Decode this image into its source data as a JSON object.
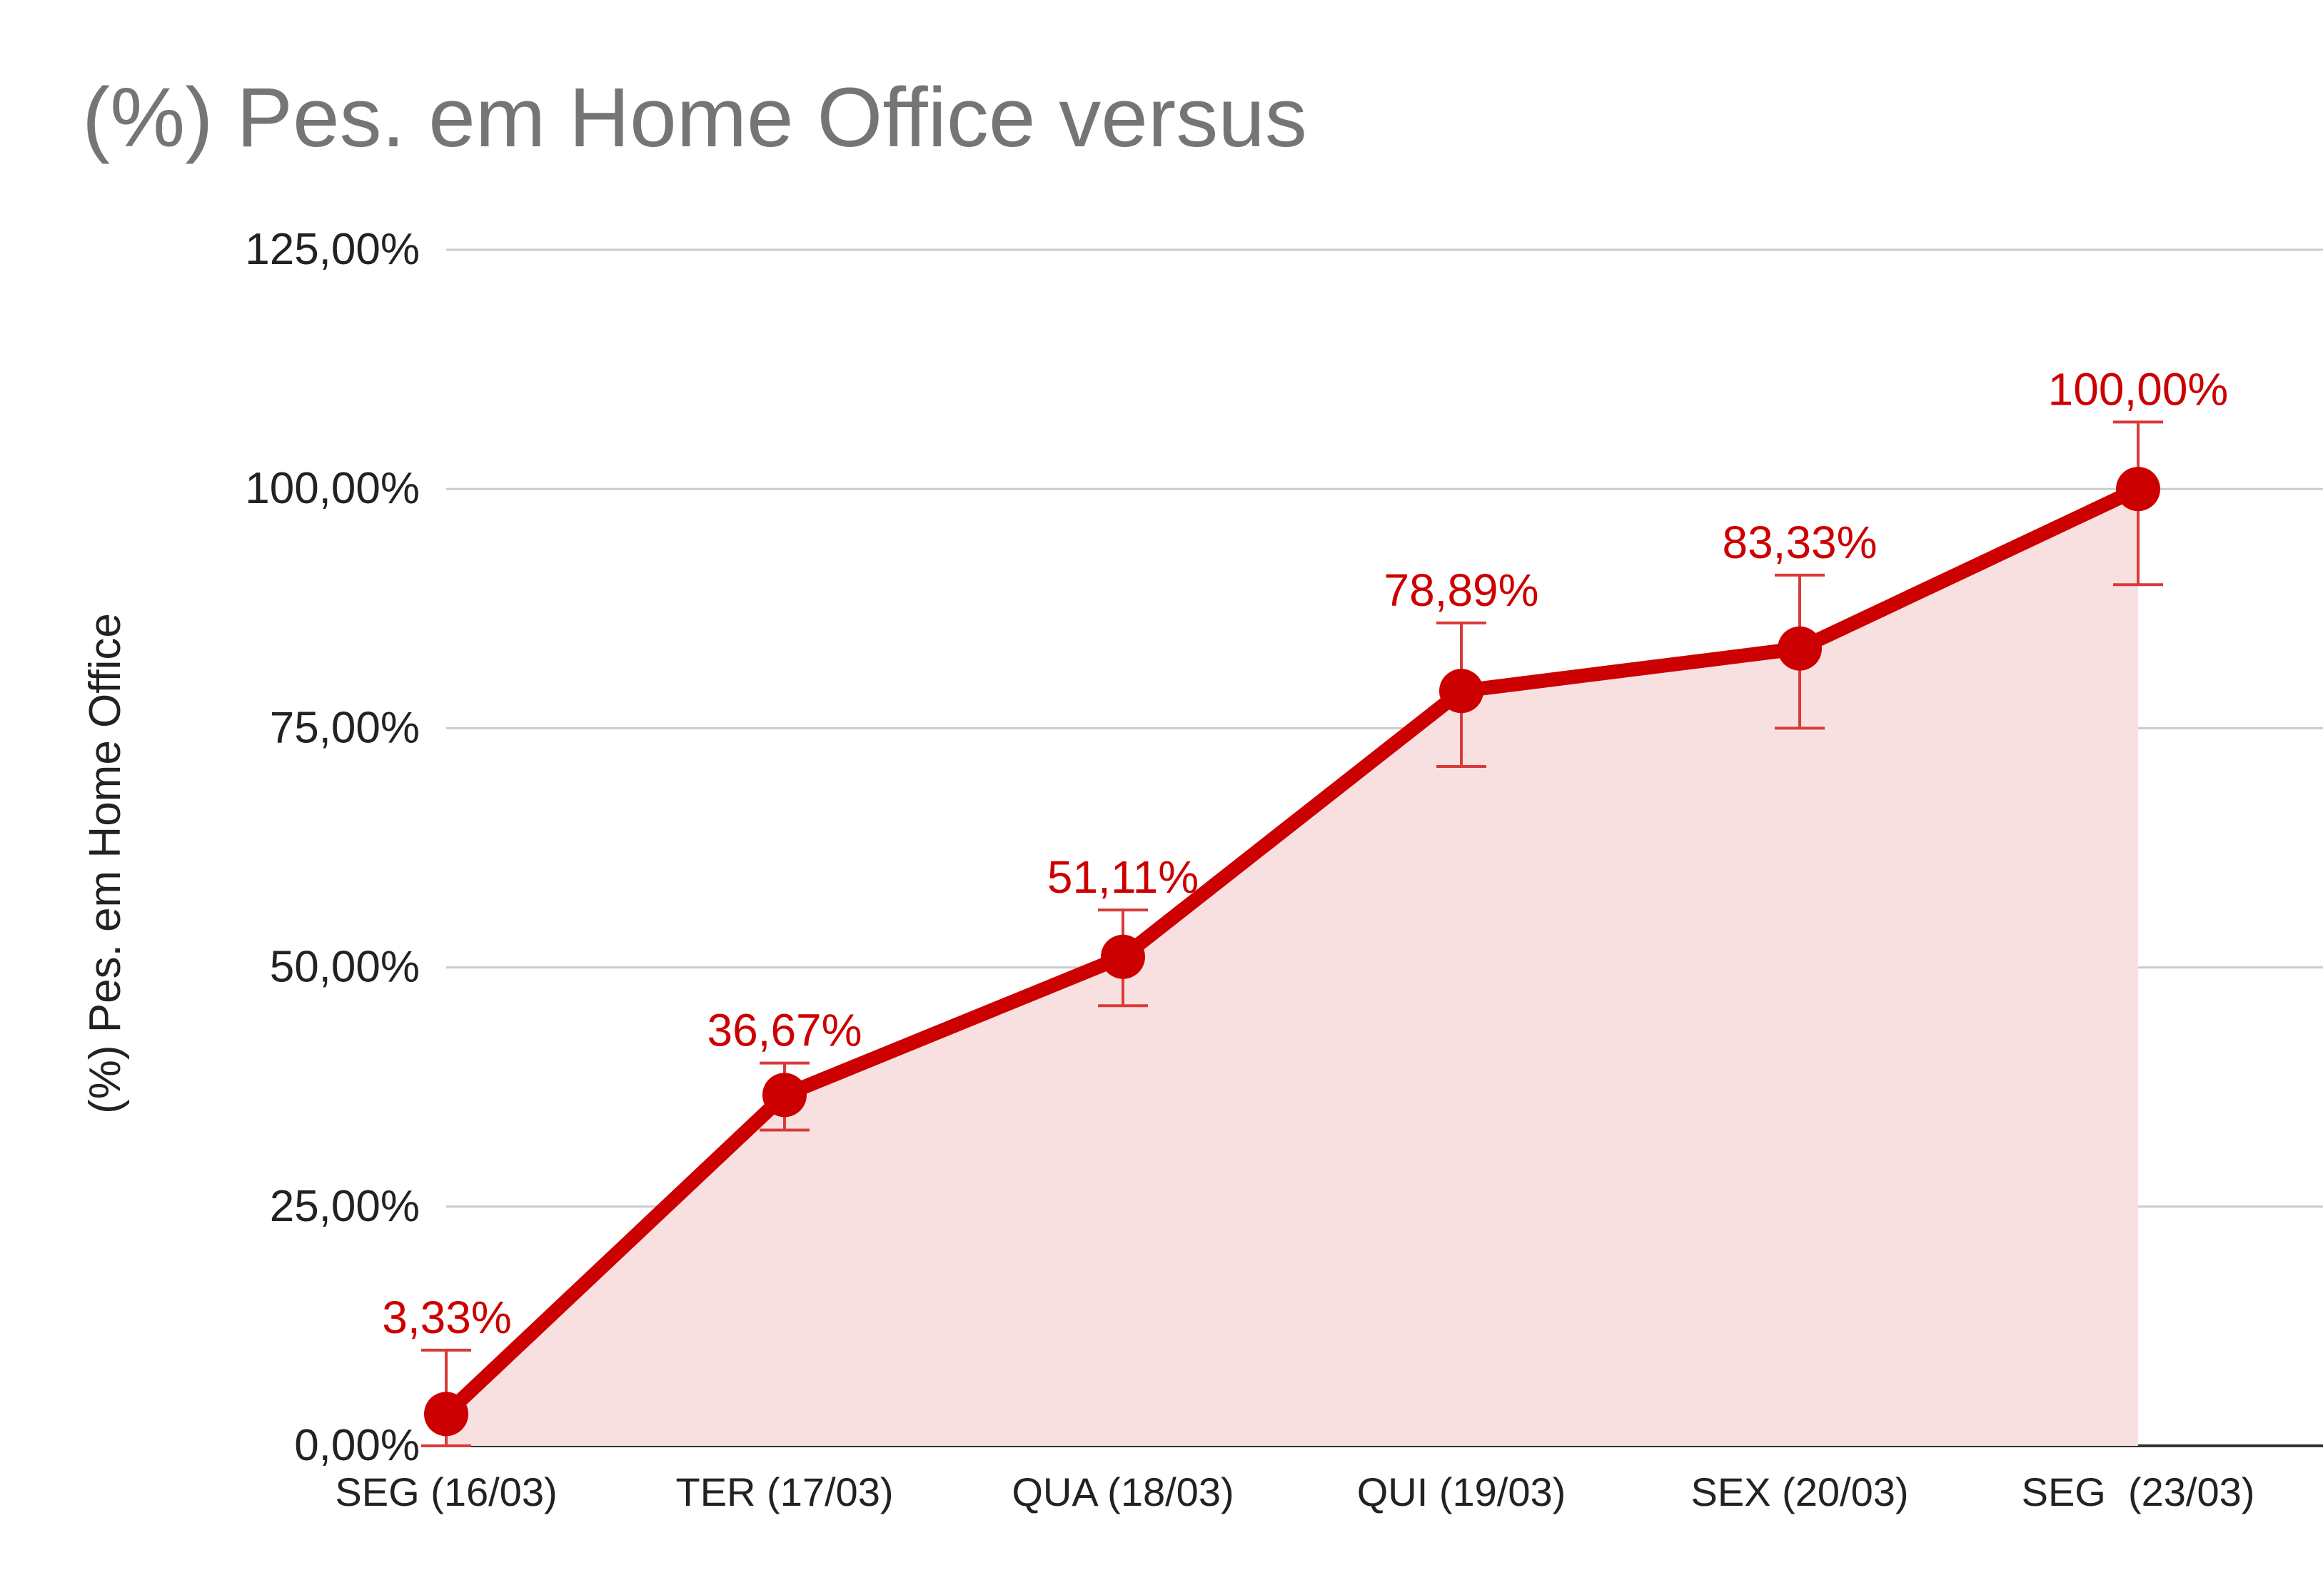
{
  "chart_data": {
    "type": "area",
    "title": "(%) Pes. em Home Office versus",
    "xlabel": "",
    "ylabel": "(%) Pes. em Home Office",
    "categories": [
      "SEG (16/03)",
      "TER (17/03)",
      "QUA (18/03)",
      "QUI (19/03)",
      "SEX (20/03)",
      "SEG  (23/03)"
    ],
    "series": [
      {
        "values": [
          3.33,
          36.67,
          51.11,
          78.89,
          83.33,
          100.0
        ],
        "labels": [
          "3,33%",
          "36,67%",
          "51,11%",
          "78,89%",
          "83,33%",
          "100,00%"
        ],
        "error_low": [
          0.0,
          33.0,
          46.0,
          71.0,
          75.0,
          90.0
        ],
        "error_high": [
          10.0,
          40.0,
          56.0,
          86.0,
          91.0,
          107.0
        ]
      }
    ],
    "ylim": [
      0,
      125
    ],
    "yticks": [
      {
        "value": 0,
        "label": "0,00%"
      },
      {
        "value": 25,
        "label": "25,00%"
      },
      {
        "value": 50,
        "label": "50,00%"
      },
      {
        "value": 75,
        "label": "75,00%"
      },
      {
        "value": 100,
        "label": "100,00%"
      },
      {
        "value": 125,
        "label": "125,00%"
      }
    ],
    "grid": true,
    "legend": "none",
    "colors": {
      "line": "#cc0000",
      "fill": "#f9e0e0",
      "error_bar": "#d93a3a",
      "grid": "#cccccc",
      "title": "#757575",
      "text": "#222222"
    }
  }
}
